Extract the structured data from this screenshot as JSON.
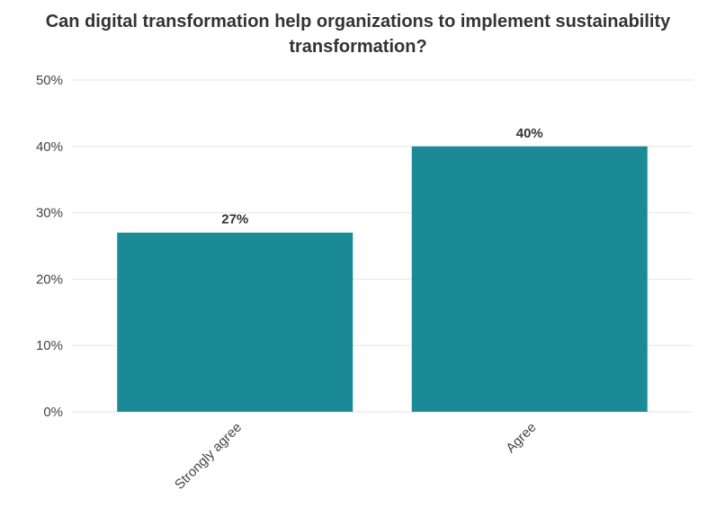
{
  "chart_data": {
    "type": "bar",
    "title": "Can digital transformation help organizations to implement sustainability transformation?",
    "categories": [
      "Strongly agree",
      "Agree"
    ],
    "values": [
      27,
      40
    ],
    "value_labels": [
      "27%",
      "40%"
    ],
    "ylim": [
      0,
      50
    ],
    "yticks": [
      0,
      10,
      20,
      30,
      40,
      50
    ],
    "ytick_labels": [
      "0%",
      "10%",
      "20%",
      "30%",
      "40%",
      "50%"
    ],
    "grid": true,
    "bar_color": "#1b8a97",
    "xlabel": "",
    "ylabel": ""
  }
}
